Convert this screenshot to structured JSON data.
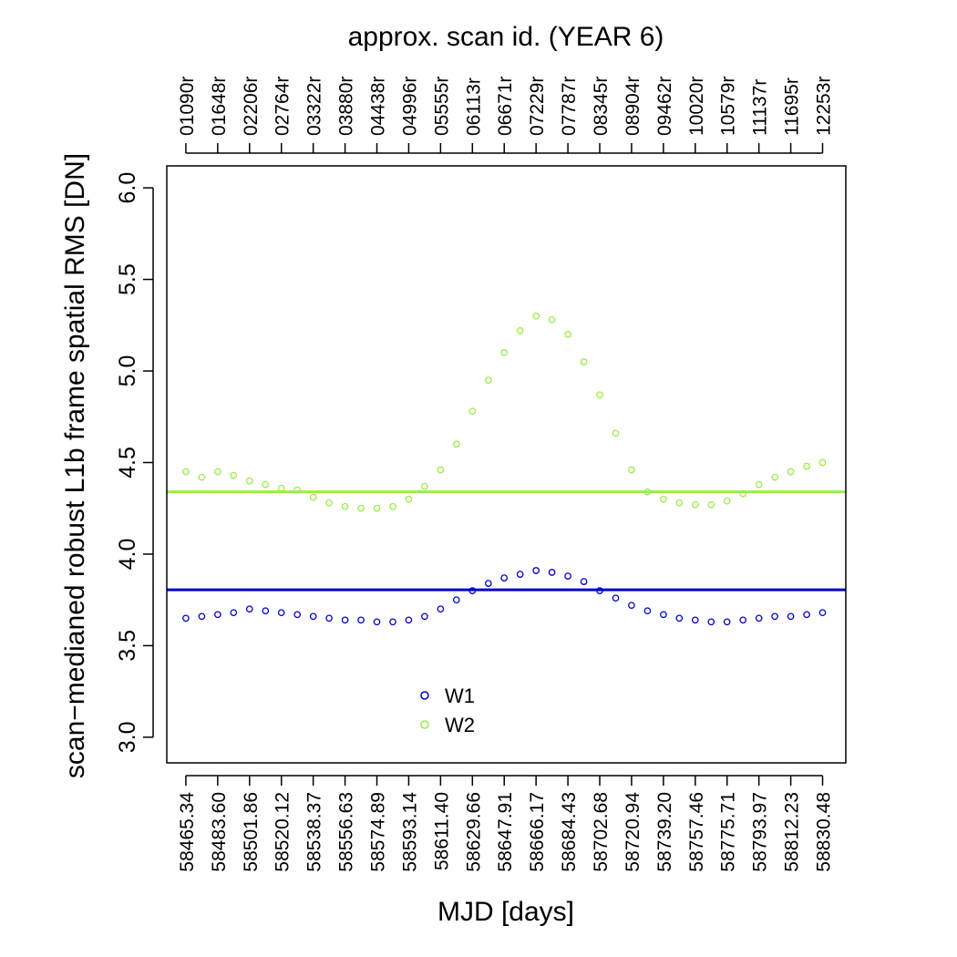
{
  "chart_data": {
    "type": "scatter",
    "title": "approx. scan id. (YEAR 6)",
    "xlabel": "MJD [days]",
    "ylabel": "scan−medianed robust L1b frame spatial RMS [DN]",
    "xlim": [
      58454.4,
      58843.8
    ],
    "ylim": [
      2.86,
      6.12
    ],
    "yticks": [
      3.0,
      3.5,
      4.0,
      4.5,
      5.0,
      5.5,
      6.0
    ],
    "ytick_labels": [
      "3.0",
      "3.5",
      "4.0",
      "4.5",
      "5.0",
      "5.5",
      "6.0"
    ],
    "xticks": [
      58465.34,
      58483.6,
      58501.86,
      58520.12,
      58538.37,
      58556.63,
      58574.89,
      58593.14,
      58611.4,
      58629.66,
      58647.91,
      58666.17,
      58684.43,
      58702.68,
      58720.94,
      58739.2,
      58757.46,
      58775.71,
      58793.97,
      58812.23,
      58830.48
    ],
    "xtick_labels": [
      "58465.34",
      "58483.60",
      "58501.86",
      "58520.12",
      "58538.37",
      "58556.63",
      "58574.89",
      "58593.14",
      "58611.40",
      "58629.66",
      "58647.91",
      "58666.17",
      "58684.43",
      "58702.68",
      "58720.94",
      "58739.20",
      "58757.46",
      "58775.71",
      "58793.97",
      "58812.23",
      "58830.48"
    ],
    "top_tick_labels": [
      "01090r",
      "01648r",
      "02206r",
      "02764r",
      "03322r",
      "03880r",
      "04438r",
      "04996r",
      "05555r",
      "06113r",
      "06671r",
      "07229r",
      "07787r",
      "08345r",
      "08904r",
      "09462r",
      "10020r",
      "10579r",
      "11137r",
      "11695r",
      "12253r"
    ],
    "grid": false,
    "legend_position": "bottom-center",
    "series": [
      {
        "name": "W1",
        "color": "#0000cc",
        "median": 3.805,
        "x": [
          58465.34,
          58474.47,
          58483.6,
          58492.73,
          58501.86,
          58510.99,
          58520.12,
          58529.25,
          58538.37,
          58547.5,
          58556.63,
          58565.76,
          58574.89,
          58584.02,
          58593.14,
          58602.27,
          58611.4,
          58620.53,
          58629.66,
          58638.79,
          58647.91,
          58657.04,
          58666.17,
          58675.3,
          58684.43,
          58693.56,
          58702.68,
          58711.81,
          58720.94,
          58730.07,
          58739.2,
          58748.33,
          58757.46,
          58766.59,
          58775.71,
          58784.84,
          58793.97,
          58803.1,
          58812.23,
          58821.36,
          58830.48
        ],
        "y": [
          3.65,
          3.66,
          3.67,
          3.68,
          3.7,
          3.69,
          3.68,
          3.67,
          3.66,
          3.65,
          3.64,
          3.64,
          3.63,
          3.63,
          3.64,
          3.66,
          3.7,
          3.75,
          3.8,
          3.84,
          3.87,
          3.89,
          3.91,
          3.9,
          3.88,
          3.85,
          3.8,
          3.76,
          3.72,
          3.69,
          3.67,
          3.65,
          3.64,
          3.63,
          3.63,
          3.64,
          3.65,
          3.66,
          3.66,
          3.67,
          3.68
        ]
      },
      {
        "name": "W2",
        "color": "#99ee44",
        "median": 4.34,
        "x": [
          58465.34,
          58474.47,
          58483.6,
          58492.73,
          58501.86,
          58510.99,
          58520.12,
          58529.25,
          58538.37,
          58547.5,
          58556.63,
          58565.76,
          58574.89,
          58584.02,
          58593.14,
          58602.27,
          58611.4,
          58620.53,
          58629.66,
          58638.79,
          58647.91,
          58657.04,
          58666.17,
          58675.3,
          58684.43,
          58693.56,
          58702.68,
          58711.81,
          58720.94,
          58730.07,
          58739.2,
          58748.33,
          58757.46,
          58766.59,
          58775.71,
          58784.84,
          58793.97,
          58803.1,
          58812.23,
          58821.36,
          58830.48
        ],
        "y": [
          4.45,
          4.42,
          4.45,
          4.43,
          4.4,
          4.38,
          4.36,
          4.35,
          4.31,
          4.28,
          4.26,
          4.25,
          4.25,
          4.26,
          4.3,
          4.37,
          4.46,
          4.6,
          4.78,
          4.95,
          5.1,
          5.22,
          5.3,
          5.28,
          5.2,
          5.05,
          4.87,
          4.66,
          4.46,
          4.34,
          4.3,
          4.28,
          4.27,
          4.27,
          4.29,
          4.33,
          4.38,
          4.42,
          4.45,
          4.48,
          4.5
        ]
      }
    ]
  }
}
